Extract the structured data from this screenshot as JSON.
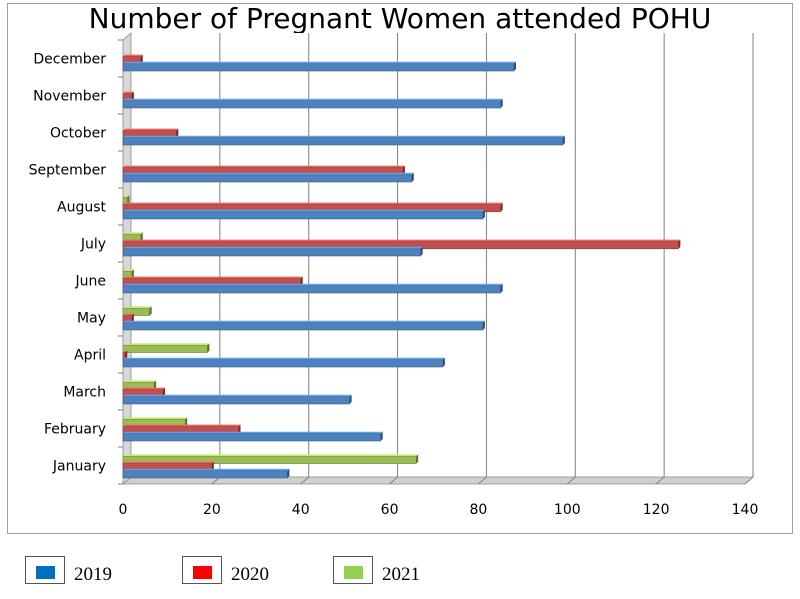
{
  "chart_data": {
    "type": "bar",
    "orientation": "horizontal",
    "title": "Number of Pregnant Women attended POHU",
    "categories": [
      "January",
      "February",
      "March",
      "April",
      "May",
      "June",
      "July",
      "August",
      "September",
      "October",
      "November",
      "December"
    ],
    "series": [
      {
        "name": "2019",
        "color": "#4f81bd",
        "values": [
          37,
          58,
          51,
          72,
          81,
          85,
          67,
          81,
          65,
          99,
          85,
          88
        ]
      },
      {
        "name": "2020",
        "color": "#c0504d",
        "values": [
          20,
          26,
          9,
          0.5,
          2,
          40,
          125,
          85,
          63,
          12,
          2,
          4
        ]
      },
      {
        "name": "2021",
        "color": "#9bbb59",
        "values": [
          66,
          14,
          7,
          19,
          6,
          2,
          4,
          1,
          0,
          0,
          0,
          0
        ]
      }
    ],
    "x_ticks": [
      0,
      20,
      40,
      60,
      80,
      100,
      120,
      140
    ],
    "xlim": [
      0,
      140
    ],
    "grid": true,
    "legend_position": "bottom"
  },
  "legend": [
    {
      "label": "2019",
      "swatch_color": "#0070c0"
    },
    {
      "label": "2020",
      "swatch_color": "#ff0000"
    },
    {
      "label": "2021",
      "swatch_color": "#92d050"
    }
  ]
}
